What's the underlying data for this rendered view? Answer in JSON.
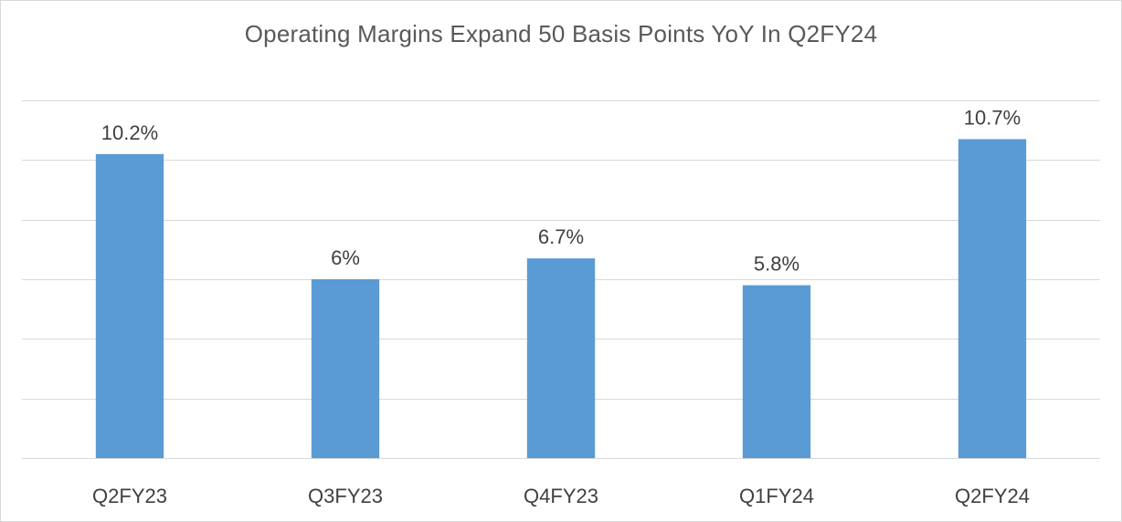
{
  "chart_data": {
    "type": "bar",
    "title": "Operating Margins Expand 50 Basis Points YoY In Q2FY24",
    "xlabel": "",
    "ylabel": "",
    "categories": [
      "Q2FY23",
      "Q3FY23",
      "Q4FY23",
      "Q1FY24",
      "Q2FY24"
    ],
    "values": [
      10.2,
      6,
      6.7,
      5.8,
      10.7
    ],
    "data_labels": [
      "10.2%",
      "6%",
      "6.7%",
      "5.8%",
      "10.7%"
    ],
    "ylim": [
      0,
      12
    ],
    "y_axis_visible": false,
    "grid": true,
    "legend": "none",
    "colors": {
      "bar": "#5b9bd5",
      "grid": "#d9d9d9",
      "text": "#404040",
      "title": "#595959"
    }
  }
}
